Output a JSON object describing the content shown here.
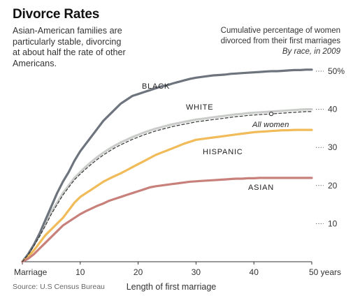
{
  "header": {
    "title": "Divorce Rates",
    "subtitle_lines": [
      "Asian-American families are",
      "particularly stable, divorcing",
      "at about half the rate of other",
      "Americans."
    ],
    "caption_lines": [
      "Cumulative percentage of women",
      "divorced from their first marriages"
    ],
    "caption_italic": "By race, in 2009"
  },
  "source": "Source: U.S Census Bureau",
  "chart_data": {
    "type": "line",
    "xlabel": "Length of first marriage",
    "ylabel": "",
    "xlim": [
      0,
      50
    ],
    "ylim": [
      0,
      50
    ],
    "x_ticks": [
      {
        "value": 0,
        "label": "Marriage"
      },
      {
        "value": 10,
        "label": "10"
      },
      {
        "value": 20,
        "label": "20"
      },
      {
        "value": 30,
        "label": "30"
      },
      {
        "value": 40,
        "label": "40"
      },
      {
        "value": 50,
        "label": "50 years"
      }
    ],
    "y_ticks": [
      {
        "value": 10,
        "label": "10"
      },
      {
        "value": 20,
        "label": "20"
      },
      {
        "value": 30,
        "label": "30"
      },
      {
        "value": 40,
        "label": "40"
      },
      {
        "value": 50,
        "label": "50%"
      }
    ],
    "grid": false,
    "series": [
      {
        "name": "BLACK",
        "color": "#6d747d",
        "style": "solid",
        "x": [
          0,
          1,
          2,
          3,
          4,
          5,
          6,
          7,
          8,
          9,
          10,
          11,
          12,
          13,
          14,
          15,
          16,
          17,
          18,
          19,
          20,
          21,
          22,
          23,
          24,
          25,
          26,
          27,
          28,
          29,
          30,
          31,
          32,
          33,
          34,
          35,
          36,
          37,
          38,
          39,
          40,
          41,
          42,
          43,
          44,
          45,
          46,
          47,
          48,
          49,
          50
        ],
        "y": [
          0,
          2,
          4.5,
          7.5,
          11,
          14.5,
          18,
          21,
          23.5,
          26.5,
          29,
          31,
          33,
          35,
          37,
          38.5,
          40,
          41.5,
          42.5,
          43.5,
          44,
          44.5,
          45,
          45.5,
          46,
          46.3,
          46.8,
          47.2,
          47.6,
          48,
          48.3,
          48.5,
          48.7,
          48.9,
          49,
          49.1,
          49.3,
          49.4,
          49.5,
          49.6,
          49.7,
          49.8,
          49.9,
          50,
          50,
          50.1,
          50.2,
          50.3,
          50.3,
          50.4,
          50.4
        ]
      },
      {
        "name": "WHITE",
        "color": "#c9ccc9",
        "style": "solid",
        "x": [
          0,
          1,
          2,
          3,
          4,
          5,
          6,
          7,
          8,
          9,
          10,
          11,
          12,
          13,
          14,
          15,
          16,
          17,
          18,
          19,
          20,
          21,
          22,
          23,
          24,
          25,
          26,
          27,
          28,
          29,
          30,
          31,
          32,
          33,
          34,
          35,
          36,
          37,
          38,
          39,
          40,
          41,
          42,
          43,
          44,
          45,
          46,
          47,
          48,
          49,
          50
        ],
        "y": [
          0,
          2,
          4.5,
          7,
          10,
          13,
          15.5,
          18,
          20,
          22,
          23.5,
          25,
          26.3,
          27.5,
          28.6,
          29.6,
          30.5,
          31.3,
          32,
          32.7,
          33.3,
          33.9,
          34.4,
          34.9,
          35.3,
          35.7,
          36.1,
          36.4,
          36.7,
          37,
          37.3,
          37.5,
          37.7,
          37.9,
          38.1,
          38.3,
          38.5,
          38.7,
          38.8,
          39,
          39.1,
          39.2,
          39.3,
          39.4,
          39.5,
          39.6,
          39.7,
          39.8,
          39.9,
          40,
          40
        ]
      },
      {
        "name": "All women",
        "color": "#333333",
        "style": "dashed",
        "x": [
          0,
          1,
          2,
          3,
          4,
          5,
          6,
          7,
          8,
          9,
          10,
          11,
          12,
          13,
          14,
          15,
          16,
          17,
          18,
          19,
          20,
          21,
          22,
          23,
          24,
          25,
          26,
          27,
          28,
          29,
          30,
          31,
          32,
          33,
          34,
          35,
          36,
          37,
          38,
          39,
          40,
          41,
          42,
          43,
          44,
          45,
          46,
          47,
          48,
          49,
          50
        ],
        "y": [
          0,
          1.8,
          4.2,
          6.7,
          9.5,
          12.5,
          15,
          17.5,
          19.5,
          21.5,
          23,
          24.4,
          25.7,
          26.9,
          28,
          29,
          29.9,
          30.7,
          31.4,
          32.1,
          32.7,
          33.3,
          33.8,
          34.3,
          34.7,
          35.1,
          35.5,
          35.8,
          36.1,
          36.4,
          36.7,
          36.9,
          37.1,
          37.3,
          37.5,
          37.7,
          37.9,
          38.1,
          38.2,
          38.4,
          38.5,
          38.6,
          38.7,
          38.8,
          38.9,
          39,
          39.1,
          39.2,
          39.3,
          39.4,
          39.4
        ]
      },
      {
        "name": "HISPANIC",
        "color": "#f0bb58",
        "style": "solid",
        "x": [
          0,
          1,
          2,
          3,
          4,
          5,
          6,
          7,
          8,
          9,
          10,
          11,
          12,
          13,
          14,
          15,
          16,
          17,
          18,
          19,
          20,
          21,
          22,
          23,
          24,
          25,
          26,
          27,
          28,
          29,
          30,
          31,
          32,
          33,
          34,
          35,
          36,
          37,
          38,
          39,
          40,
          41,
          42,
          43,
          44,
          45,
          46,
          47,
          48,
          49,
          50
        ],
        "y": [
          0,
          1.3,
          3,
          5,
          7,
          8.5,
          10,
          11.5,
          13.5,
          15.5,
          17,
          18,
          19,
          20,
          21,
          21.8,
          22.5,
          23.2,
          24,
          24.8,
          25.6,
          26.4,
          27.2,
          28,
          28.6,
          29.2,
          29.8,
          30.4,
          31,
          31.5,
          32,
          32.2,
          32.4,
          32.6,
          32.8,
          33,
          33.2,
          33.4,
          33.6,
          33.8,
          34,
          34.1,
          34.2,
          34.3,
          34.4,
          34.5,
          34.5,
          34.6,
          34.6,
          34.6,
          34.6
        ]
      },
      {
        "name": "ASIAN",
        "color": "#c8807b",
        "style": "solid",
        "x": [
          0,
          1,
          2,
          3,
          4,
          5,
          6,
          7,
          8,
          9,
          10,
          11,
          12,
          13,
          14,
          15,
          16,
          17,
          18,
          19,
          20,
          21,
          22,
          23,
          24,
          25,
          26,
          27,
          28,
          29,
          30,
          31,
          32,
          33,
          34,
          35,
          36,
          37,
          38,
          39,
          40,
          41,
          42,
          43,
          44,
          45,
          46,
          47,
          48,
          49,
          50
        ],
        "y": [
          0,
          0.8,
          2,
          3.5,
          5,
          6.5,
          8,
          9.5,
          10.5,
          11.5,
          12.5,
          13.3,
          14,
          14.7,
          15.3,
          16,
          16.5,
          17,
          17.5,
          18,
          18.5,
          19,
          19.5,
          19.8,
          20,
          20.2,
          20.4,
          20.6,
          20.8,
          21,
          21.1,
          21.2,
          21.3,
          21.4,
          21.5,
          21.6,
          21.7,
          21.8,
          21.8,
          21.9,
          21.9,
          22,
          22,
          22,
          22,
          22,
          22,
          22,
          22,
          22,
          22
        ]
      }
    ],
    "annotations": [
      {
        "text": "BLACK",
        "series": "BLACK"
      },
      {
        "text": "WHITE",
        "series": "WHITE"
      },
      {
        "text": "All women",
        "series": "All women"
      },
      {
        "text": "HISPANIC",
        "series": "HISPANIC"
      },
      {
        "text": "ASIAN",
        "series": "ASIAN"
      }
    ]
  }
}
